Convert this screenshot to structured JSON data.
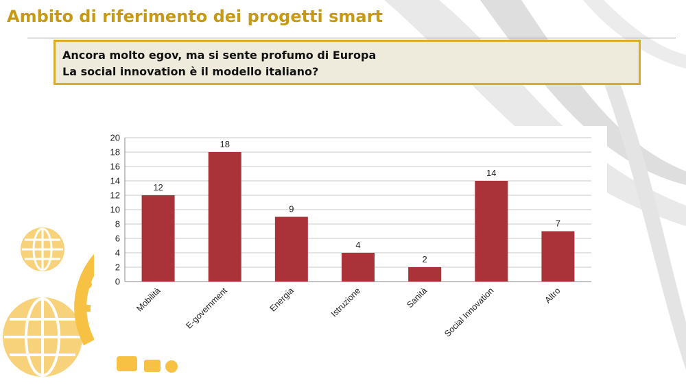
{
  "slide": {
    "title": "Ambito di riferimento dei progetti smart",
    "subtitle_lines": [
      "Ancora molto egov, ma si sente profumo di Europa",
      "La social innovation è il modello italiano?"
    ]
  },
  "colors": {
    "title": "#c79a16",
    "box_border": "#d8ac29",
    "box_fill": "#eeebdd",
    "bar": "#a93338",
    "deco": "#f7d27a"
  },
  "chart_data": {
    "type": "bar",
    "title": "",
    "xlabel": "",
    "ylabel": "",
    "categories": [
      "Mobilità",
      "E-government",
      "Energia",
      "Istruzione",
      "Sanità",
      "Social Innovation",
      "Altro"
    ],
    "values": [
      12,
      18,
      9,
      4,
      2,
      14,
      7
    ],
    "ylim": [
      0,
      20
    ],
    "yticks": [
      0,
      2,
      4,
      6,
      8,
      10,
      12,
      14,
      16,
      18,
      20
    ],
    "grid": true,
    "data_labels": true,
    "legend": "none"
  }
}
